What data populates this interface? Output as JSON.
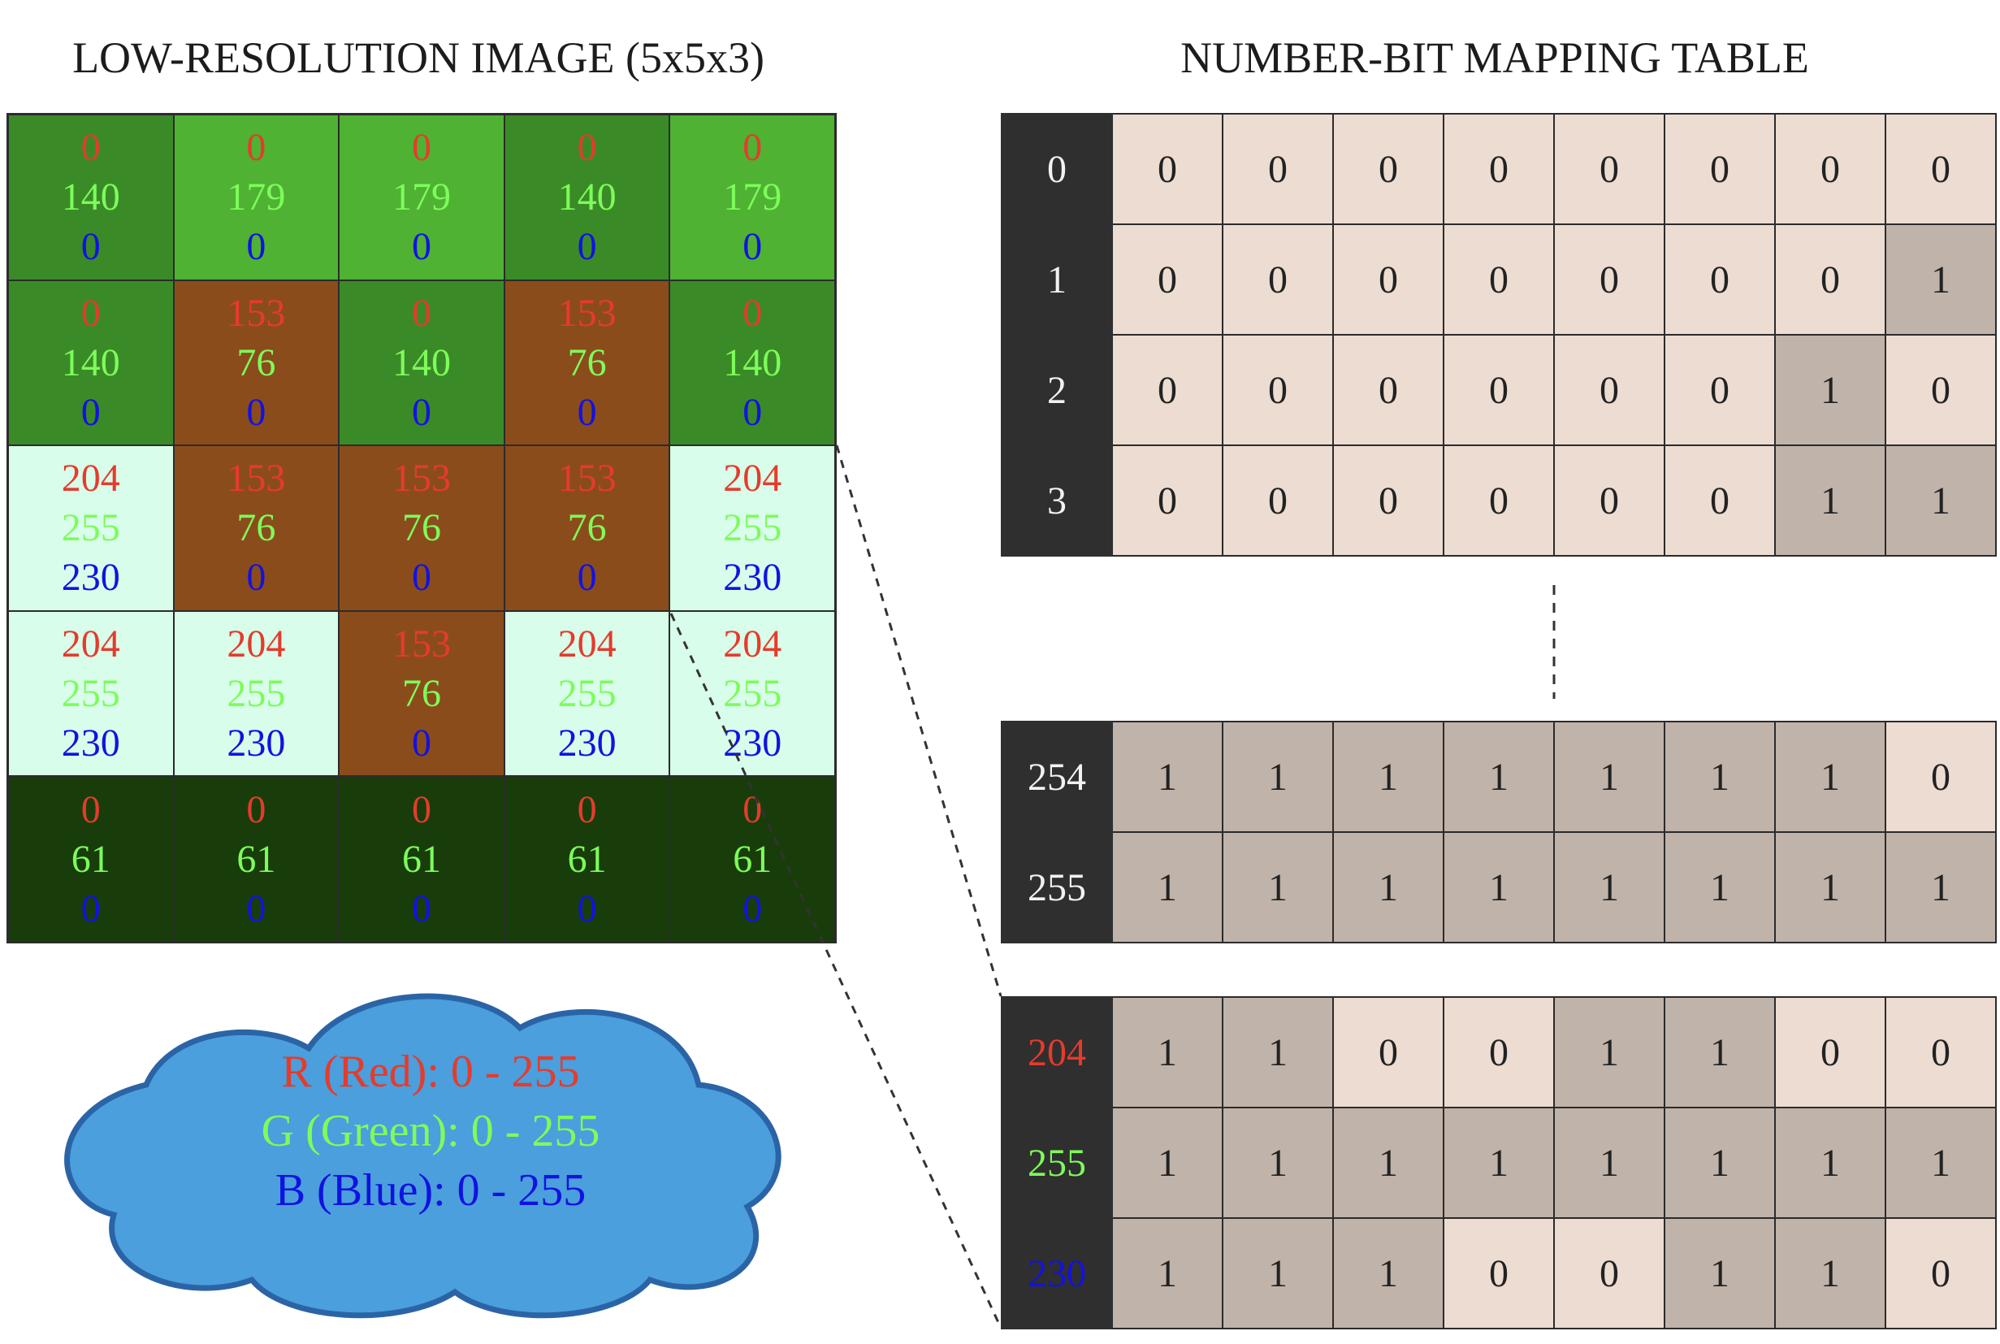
{
  "titles": {
    "left": "LOW-RESOLUTION IMAGE (5x5x3)",
    "right": "NUMBER-BIT MAPPING TABLE"
  },
  "colors": {
    "red_text": "#e53b2c",
    "green_text": "#7dfc5a",
    "blue_text": "#1212e0",
    "bit_zero": "#ecdcd2",
    "bit_one": "#c0b3aa",
    "number_column": "#2f2f2f",
    "cloud_fill": "#4a9fdc",
    "cloud_stroke": "#2b64a6"
  },
  "pixel_grid": [
    [
      {
        "r": "0",
        "g": "140",
        "b": "0",
        "bg": "#3a8b27"
      },
      {
        "r": "0",
        "g": "179",
        "b": "0",
        "bg": "#4fb233"
      },
      {
        "r": "0",
        "g": "179",
        "b": "0",
        "bg": "#4fb233"
      },
      {
        "r": "0",
        "g": "140",
        "b": "0",
        "bg": "#3a8b27"
      },
      {
        "r": "0",
        "g": "179",
        "b": "0",
        "bg": "#4fb233"
      }
    ],
    [
      {
        "r": "0",
        "g": "140",
        "b": "0",
        "bg": "#3a8b27"
      },
      {
        "r": "153",
        "g": "76",
        "b": "0",
        "bg": "#8b4c1c"
      },
      {
        "r": "0",
        "g": "140",
        "b": "0",
        "bg": "#3a8b27"
      },
      {
        "r": "153",
        "g": "76",
        "b": "0",
        "bg": "#8b4c1c"
      },
      {
        "r": "0",
        "g": "140",
        "b": "0",
        "bg": "#3a8b27"
      }
    ],
    [
      {
        "r": "204",
        "g": "255",
        "b": "230",
        "bg": "#d8fdea"
      },
      {
        "r": "153",
        "g": "76",
        "b": "0",
        "bg": "#8b4c1c"
      },
      {
        "r": "153",
        "g": "76",
        "b": "0",
        "bg": "#8b4c1c"
      },
      {
        "r": "153",
        "g": "76",
        "b": "0",
        "bg": "#8b4c1c"
      },
      {
        "r": "204",
        "g": "255",
        "b": "230",
        "bg": "#d8fdea"
      }
    ],
    [
      {
        "r": "204",
        "g": "255",
        "b": "230",
        "bg": "#d8fdea"
      },
      {
        "r": "204",
        "g": "255",
        "b": "230",
        "bg": "#d8fdea"
      },
      {
        "r": "153",
        "g": "76",
        "b": "0",
        "bg": "#8b4c1c"
      },
      {
        "r": "204",
        "g": "255",
        "b": "230",
        "bg": "#d8fdea"
      },
      {
        "r": "204",
        "g": "255",
        "b": "230",
        "bg": "#d8fdea"
      }
    ],
    [
      {
        "r": "0",
        "g": "61",
        "b": "0",
        "bg": "#183d0b"
      },
      {
        "r": "0",
        "g": "61",
        "b": "0",
        "bg": "#183d0b"
      },
      {
        "r": "0",
        "g": "61",
        "b": "0",
        "bg": "#183d0b"
      },
      {
        "r": "0",
        "g": "61",
        "b": "0",
        "bg": "#183d0b"
      },
      {
        "r": "0",
        "g": "61",
        "b": "0",
        "bg": "#183d0b"
      }
    ]
  ],
  "mapping_tables": {
    "top": [
      {
        "number": "0",
        "bits": [
          "0",
          "0",
          "0",
          "0",
          "0",
          "0",
          "0",
          "0"
        ]
      },
      {
        "number": "1",
        "bits": [
          "0",
          "0",
          "0",
          "0",
          "0",
          "0",
          "0",
          "1"
        ]
      },
      {
        "number": "2",
        "bits": [
          "0",
          "0",
          "0",
          "0",
          "0",
          "0",
          "1",
          "0"
        ]
      },
      {
        "number": "3",
        "bits": [
          "0",
          "0",
          "0",
          "0",
          "0",
          "0",
          "1",
          "1"
        ]
      }
    ],
    "middle": [
      {
        "number": "254",
        "bits": [
          "1",
          "1",
          "1",
          "1",
          "1",
          "1",
          "1",
          "0"
        ]
      },
      {
        "number": "255",
        "bits": [
          "1",
          "1",
          "1",
          "1",
          "1",
          "1",
          "1",
          "1"
        ]
      }
    ],
    "example": [
      {
        "number": "204",
        "channel": "red",
        "bits": [
          "1",
          "1",
          "0",
          "0",
          "1",
          "1",
          "0",
          "0"
        ]
      },
      {
        "number": "255",
        "channel": "green",
        "bits": [
          "1",
          "1",
          "1",
          "1",
          "1",
          "1",
          "1",
          "1"
        ]
      },
      {
        "number": "230",
        "channel": "blue",
        "bits": [
          "1",
          "1",
          "1",
          "0",
          "0",
          "1",
          "1",
          "0"
        ]
      }
    ]
  },
  "legend": {
    "red": "R (Red): 0 - 255",
    "green": "G (Green): 0 - 255",
    "blue": "B (Blue): 0 - 255"
  }
}
